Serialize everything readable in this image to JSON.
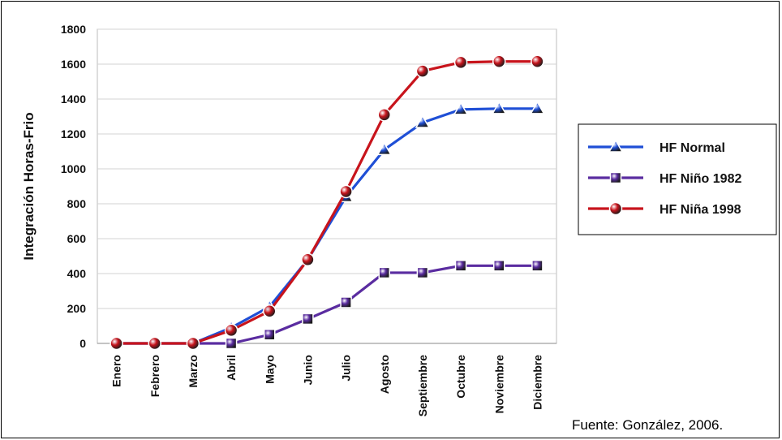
{
  "chart_data": {
    "type": "line",
    "title": "",
    "ylabel": "Integración Horas-Frio",
    "xlabel": "",
    "categories": [
      "Enero",
      "Febrero",
      "Marzo",
      "Abril",
      "Mayo",
      "Junio",
      "Julio",
      "Agosto",
      "Septiembre",
      "Octubre",
      "Noviembre",
      "Diciembre"
    ],
    "ylim": [
      0,
      1800
    ],
    "yticks": [
      0,
      200,
      400,
      600,
      800,
      1000,
      1200,
      1400,
      1600,
      1800
    ],
    "grid": true,
    "legend_position": "right",
    "series": [
      {
        "name": "HF Normal",
        "marker": "triangle",
        "color": "#1f4fd6",
        "values": [
          0,
          0,
          0,
          90,
          210,
          480,
          840,
          1110,
          1265,
          1340,
          1345,
          1345
        ]
      },
      {
        "name": "HF Niño 1982",
        "marker": "square",
        "color": "#5a2ca0",
        "values": [
          0,
          0,
          0,
          0,
          50,
          140,
          235,
          405,
          405,
          445,
          445,
          445
        ]
      },
      {
        "name": "HF Niña 1998",
        "marker": "circle",
        "color": "#c8141c",
        "values": [
          0,
          0,
          0,
          75,
          185,
          480,
          870,
          1310,
          1560,
          1610,
          1615,
          1615
        ]
      }
    ]
  },
  "source_note": "Fuente: González, 2006."
}
